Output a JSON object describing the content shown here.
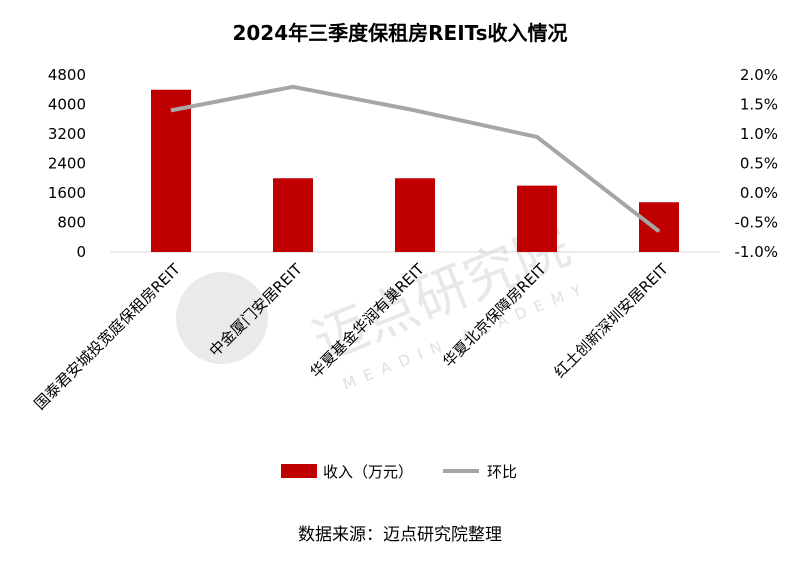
{
  "chart_data": {
    "type": "bar+line",
    "title": "2024年三季度保租房REITs收入情况",
    "categories": [
      "国泰君安城投宽庭保租房REIT",
      "中金厦门安居REIT",
      "华夏基金华润有巢REIT",
      "华夏北京保障房REIT",
      "红土创新深圳安居REIT"
    ],
    "series": [
      {
        "name": "收入（万元）",
        "type": "bar",
        "axis": "left",
        "color": "#c00000",
        "values": [
          4400,
          2000,
          2000,
          1800,
          1350
        ]
      },
      {
        "name": "环比",
        "type": "line",
        "axis": "right",
        "color": "#a6a6a6",
        "values": [
          1.4,
          1.8,
          1.4,
          0.95,
          -0.65
        ]
      }
    ],
    "y_left": {
      "ticks": [
        "4800",
        "4000",
        "3200",
        "2400",
        "1600",
        "800",
        "0"
      ],
      "ylim": [
        0,
        4800
      ]
    },
    "y_right": {
      "ticks": [
        "2.0%",
        "1.5%",
        "1.0%",
        "0.5%",
        "0.0%",
        "-0.5%",
        "-1.0%"
      ],
      "ylim": [
        -1.0,
        2.0
      ]
    },
    "grid": false,
    "legend": "bottom"
  },
  "footer": {
    "source": "数据来源：迈点研究院整理"
  },
  "watermark": {
    "text_cn": "迈点研究院",
    "text_en": "MEADIN ACADEMY"
  }
}
